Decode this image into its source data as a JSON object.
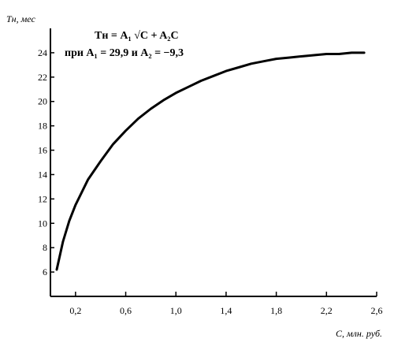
{
  "chart_data": {
    "type": "line",
    "y_axis_label": "Tн, мес",
    "x_axis_label": "С, млн. руб.",
    "formula": "Tн = A₁ √C + A₂C",
    "formula_condition": "при A₁ = 29,9 и A₂ = −9,3",
    "xlim": [
      0,
      2.6
    ],
    "ylim": [
      4,
      26
    ],
    "x_ticks": [
      0.2,
      0.6,
      1.0,
      1.4,
      1.8,
      2.2,
      2.6
    ],
    "x_tick_labels": [
      "0,2",
      "0,6",
      "1,0",
      "1,4",
      "1,8",
      "2,2",
      "2,6"
    ],
    "y_ticks": [
      6,
      8,
      10,
      12,
      14,
      16,
      18,
      20,
      22,
      24
    ],
    "y_tick_labels": [
      "6",
      "8",
      "10",
      "12",
      "14",
      "16",
      "18",
      "20",
      "22",
      "24"
    ],
    "series": [
      {
        "x": [
          0.05,
          0.1,
          0.15,
          0.2,
          0.3,
          0.4,
          0.5,
          0.6,
          0.7,
          0.8,
          0.9,
          1.0,
          1.1,
          1.2,
          1.3,
          1.4,
          1.5,
          1.6,
          1.7,
          1.8,
          1.9,
          2.0,
          2.1,
          2.2,
          2.3,
          2.4,
          2.5
        ],
        "values": [
          6.2,
          8.5,
          10.2,
          11.5,
          13.6,
          15.1,
          16.5,
          17.6,
          18.6,
          19.4,
          20.1,
          20.7,
          21.2,
          21.7,
          22.1,
          22.5,
          22.8,
          23.1,
          23.3,
          23.5,
          23.6,
          23.7,
          23.8,
          23.9,
          23.9,
          24.0,
          24.0
        ]
      }
    ]
  }
}
